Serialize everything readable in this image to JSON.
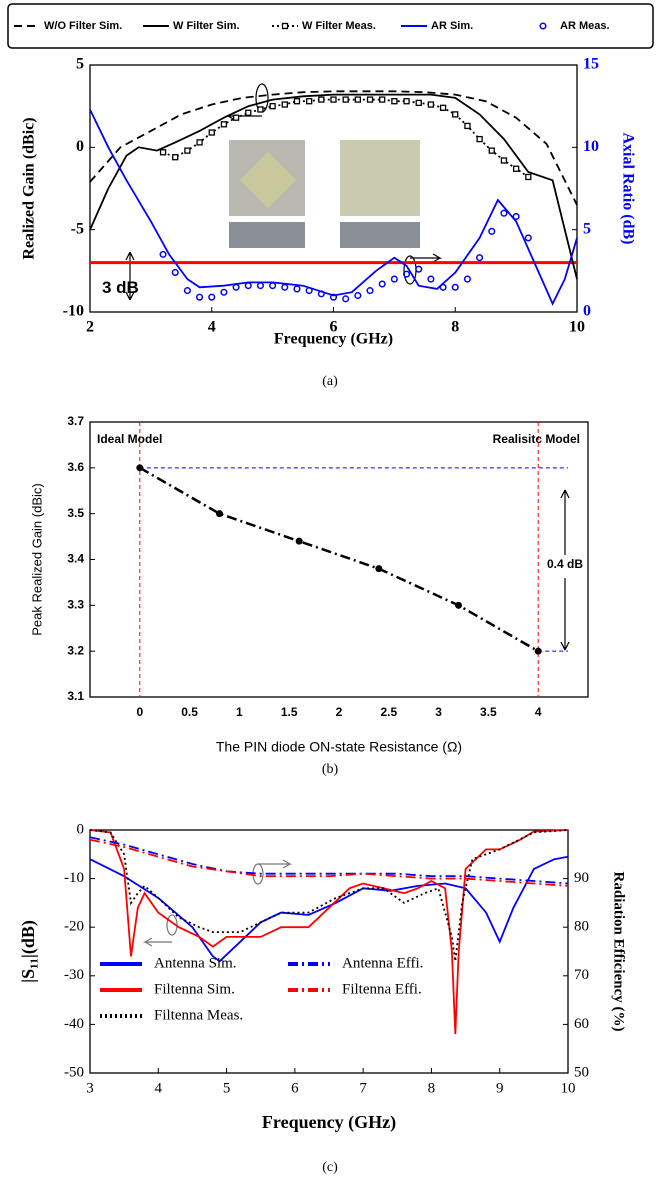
{
  "chart_data": [
    {
      "type": "line",
      "caption": "(a)",
      "xlabel": "Frequency (GHz)",
      "ylabel": "Realized Gain (dBic)",
      "y2label": "Axial Ratio (dB)",
      "y2color": "#0000ff",
      "xlim": [
        2,
        10
      ],
      "xticks": [
        2,
        4,
        6,
        8,
        10
      ],
      "ylim": [
        -10,
        5
      ],
      "yticks": [
        -10,
        -5,
        0,
        5
      ],
      "y2lim": [
        0,
        15
      ],
      "y2ticks": [
        0,
        5,
        10,
        15
      ],
      "legend": "top",
      "reference_line": {
        "value": 3,
        "label": "3 dB",
        "axis": "y2",
        "color": "#ff0000"
      },
      "series": [
        {
          "name": "W/O Filter Sim.",
          "color": "#000000",
          "dash": "dashed",
          "x": [
            2,
            2.5,
            3,
            3.5,
            4,
            4.5,
            5,
            5.5,
            6,
            6.5,
            7,
            7.5,
            8,
            8.5,
            9,
            9.5,
            10
          ],
          "values": [
            -2.1,
            0,
            1.0,
            2.0,
            2.6,
            3.0,
            3.2,
            3.35,
            3.4,
            3.4,
            3.4,
            3.35,
            3.2,
            2.8,
            1.8,
            0.2,
            -3.5
          ]
        },
        {
          "name": "W Filter Sim.",
          "color": "#000000",
          "dash": "solid",
          "x": [
            2,
            2.3,
            2.6,
            2.8,
            3.1,
            3.4,
            3.8,
            4.2,
            4.6,
            5,
            5.5,
            6,
            7,
            7.6,
            8,
            8.4,
            8.8,
            9.2,
            9.6,
            10
          ],
          "values": [
            -5,
            -2.5,
            -0.5,
            0,
            -0.2,
            0.3,
            1.0,
            1.8,
            2.5,
            2.9,
            3.1,
            3.2,
            3.2,
            3.2,
            3.0,
            2.0,
            0.5,
            -1.5,
            -2.0,
            -8
          ]
        },
        {
          "name": "W Filter Meas.",
          "color": "#000000",
          "dash": "dotted",
          "marker": "square",
          "x": [
            3.2,
            3.4,
            3.6,
            3.8,
            4,
            4.2,
            4.4,
            4.6,
            4.8,
            5,
            5.2,
            5.4,
            5.6,
            5.8,
            6,
            6.2,
            6.4,
            6.6,
            6.8,
            7,
            7.2,
            7.4,
            7.6,
            7.8,
            8,
            8.2,
            8.4,
            8.6,
            8.8,
            9,
            9.2
          ],
          "values": [
            -0.3,
            -0.6,
            -0.2,
            0.3,
            0.9,
            1.4,
            1.8,
            2.1,
            2.3,
            2.5,
            2.6,
            2.8,
            2.8,
            2.9,
            2.9,
            2.9,
            2.9,
            2.9,
            2.9,
            2.8,
            2.8,
            2.7,
            2.6,
            2.4,
            2.0,
            1.3,
            0.5,
            -0.2,
            -0.8,
            -1.3,
            -1.8
          ]
        },
        {
          "name": "AR Sim.",
          "color": "#0000ff",
          "dash": "solid",
          "axis": "y2",
          "x": [
            2,
            2.3,
            2.6,
            3,
            3.3,
            3.6,
            3.8,
            4.2,
            4.6,
            5,
            5.5,
            6,
            6.3,
            6.7,
            7,
            7.2,
            7.4,
            7.7,
            8,
            8.4,
            8.7,
            9,
            9.3,
            9.6,
            9.8,
            10
          ],
          "values": [
            12.3,
            10,
            8,
            5.5,
            3.5,
            2.0,
            1.5,
            1.6,
            1.8,
            1.8,
            1.6,
            1.0,
            1.2,
            2.5,
            3.3,
            2.8,
            1.6,
            1.4,
            2.4,
            4.5,
            6.8,
            5.5,
            3,
            0.5,
            2.0,
            4.5
          ]
        },
        {
          "name": "AR Meas.",
          "color": "#0000ff",
          "dash": "none",
          "marker": "circle",
          "axis": "y2",
          "x": [
            3.2,
            3.4,
            3.6,
            3.8,
            4,
            4.2,
            4.4,
            4.6,
            4.8,
            5,
            5.2,
            5.4,
            5.6,
            5.8,
            6,
            6.2,
            6.4,
            6.6,
            6.8,
            7,
            7.2,
            7.4,
            7.6,
            7.8,
            8,
            8.2,
            8.4,
            8.6,
            8.8,
            9,
            9.2
          ],
          "values": [
            3.5,
            2.4,
            1.3,
            0.9,
            0.9,
            1.2,
            1.5,
            1.6,
            1.6,
            1.6,
            1.5,
            1.4,
            1.3,
            1.1,
            0.9,
            0.8,
            1.0,
            1.3,
            1.7,
            2.0,
            2.3,
            2.6,
            2.0,
            1.5,
            1.5,
            2.0,
            3.3,
            4.9,
            6.0,
            5.8,
            4.5
          ]
        }
      ]
    },
    {
      "type": "line",
      "caption": "(b)",
      "xlabel": "The PIN diode ON-state Resistance  (Ω)",
      "ylabel": "Peak Realized Gain (dBic)",
      "xlim": [
        -0.5,
        4.5
      ],
      "xticks": [
        0,
        0.5,
        1,
        1.5,
        2,
        2.5,
        3,
        3.5,
        4
      ],
      "ylim": [
        3.1,
        3.7
      ],
      "yticks": [
        3.1,
        3.2,
        3.3,
        3.4,
        3.5,
        3.6,
        3.7
      ],
      "annotations": [
        "Ideal Model",
        "Realisitc Model",
        "0.4 dB"
      ],
      "guides": true,
      "series": [
        {
          "color": "#000000",
          "dash": "dashdot",
          "marker": "dot",
          "x": [
            0,
            0.8,
            1.6,
            2.4,
            3.2,
            4
          ],
          "values": [
            3.6,
            3.5,
            3.44,
            3.38,
            3.3,
            3.2
          ]
        }
      ]
    },
    {
      "type": "line",
      "caption": "(c)",
      "xlabel": "Frequency (GHz)",
      "ylabel": "|S₁₁|(dB)",
      "y2label": "Radiation Efficiency (%)",
      "y2color": "#000000",
      "xlim": [
        3,
        10
      ],
      "xticks": [
        3,
        4,
        5,
        6,
        7,
        8,
        9,
        10
      ],
      "ylim": [
        -50,
        0
      ],
      "yticks": [
        -50,
        -40,
        -30,
        -20,
        -10,
        0
      ],
      "y2lim": [
        50,
        100
      ],
      "y2ticks": [
        50,
        60,
        70,
        80,
        90
      ],
      "legend": "lower left",
      "series": [
        {
          "name": "Antenna Sim.",
          "color": "#0000ff",
          "dash": "solid",
          "x": [
            3,
            3.5,
            4,
            4.5,
            4.8,
            4.9,
            5.2,
            5.5,
            5.8,
            6.2,
            6.6,
            7,
            7.4,
            7.8,
            8.2,
            8.5,
            8.8,
            9,
            9.2,
            9.5,
            9.8,
            10
          ],
          "values": [
            -6,
            -9.5,
            -14,
            -20,
            -26,
            -27,
            -23,
            -19,
            -17,
            -17.5,
            -15,
            -12,
            -12.5,
            -11.5,
            -11,
            -12,
            -17,
            -23,
            -16,
            -8,
            -6,
            -5.5
          ]
        },
        {
          "name": "Filtenna Sim.",
          "color": "#ff0000",
          "dash": "solid",
          "x": [
            3,
            3.3,
            3.5,
            3.6,
            3.7,
            3.8,
            4,
            4.3,
            4.6,
            4.8,
            5,
            5.5,
            5.8,
            6.2,
            6.5,
            6.8,
            7,
            7.3,
            7.6,
            7.8,
            8,
            8.2,
            8.3,
            8.35,
            8.4,
            8.5,
            8.8,
            9,
            9.3,
            9.5,
            10
          ],
          "values": [
            0,
            -0.5,
            -8,
            -26,
            -16,
            -13,
            -17,
            -20,
            -22,
            -24,
            -22,
            -22,
            -20,
            -20,
            -16,
            -12,
            -11,
            -12,
            -13,
            -12,
            -10.5,
            -12,
            -25,
            -42,
            -25,
            -8,
            -4,
            -4,
            -2,
            -0.3,
            0
          ]
        },
        {
          "name": "Filtenna Meas.",
          "color": "#000000",
          "dash": "dotted",
          "x": [
            3,
            3.3,
            3.5,
            3.6,
            3.7,
            3.8,
            4,
            4.3,
            4.6,
            4.8,
            5.2,
            5.5,
            5.8,
            6.2,
            6.6,
            7,
            7.3,
            7.6,
            7.9,
            8.1,
            8.3,
            8.35,
            8.45,
            8.6,
            9,
            9.5,
            10
          ],
          "values": [
            0,
            -0.5,
            -5,
            -15,
            -13,
            -11.5,
            -14,
            -18,
            -20,
            -21,
            -21,
            -19,
            -17,
            -17,
            -14,
            -12,
            -12,
            -15,
            -13,
            -12,
            -22,
            -27,
            -15,
            -6,
            -4,
            -0.5,
            0
          ]
        },
        {
          "name": "Antenna Effi.",
          "color": "#0000ff",
          "dash": "dashdot",
          "axis": "y2",
          "x": [
            3,
            3.5,
            4,
            4.5,
            5,
            5.5,
            6,
            6.5,
            7,
            7.5,
            8,
            8.5,
            9,
            9.5,
            10
          ],
          "values": [
            98.5,
            97,
            95,
            93,
            91.5,
            91,
            91,
            91,
            91,
            91,
            90.5,
            90.5,
            90,
            89.5,
            89
          ]
        },
        {
          "name": "Filtenna Effi.",
          "color": "#ff0000",
          "dash": "dashdot",
          "axis": "y2",
          "x": [
            3,
            3.5,
            4,
            4.5,
            5,
            5.5,
            6,
            6.5,
            7,
            7.5,
            8,
            8.5,
            9,
            9.5,
            10
          ],
          "values": [
            98,
            96.5,
            94.5,
            92.5,
            91.5,
            90.5,
            90.5,
            90.5,
            91,
            90.5,
            90,
            90,
            89.5,
            89,
            88.5
          ]
        }
      ]
    }
  ]
}
